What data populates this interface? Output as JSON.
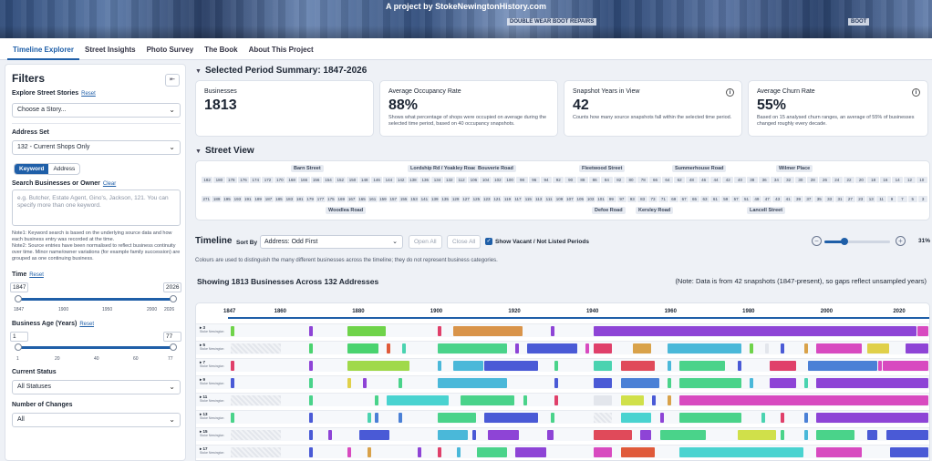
{
  "banner": {
    "text": "A project by StokeNewingtonHistory.com",
    "sign_1": "DOUBLE WEAR BOOT REPAIRS",
    "sign_2": "BOOT"
  },
  "nav": {
    "tabs": [
      "Timeline Explorer",
      "Street Insights",
      "Photo Survey",
      "The Book",
      "About This Project"
    ],
    "active": "Timeline Explorer"
  },
  "sidebar": {
    "title": "Filters",
    "collapse_icon": "collapse-icon",
    "street_stories": {
      "label": "Explore Street Stories",
      "reset": "Reset",
      "value": "Choose a Story..."
    },
    "address_set": {
      "label": "Address Set",
      "value": "132 - Current Shops Only"
    },
    "mode": {
      "keyword": "Keyword",
      "address": "Address"
    },
    "search": {
      "label": "Search Businesses or Owner",
      "clear": "Clear",
      "placeholder": "e.g. Butcher, Estate Agent, Gino's, Jackson, 121. You can specify more than one keyword."
    },
    "note1": "Note1: Keyword search is based on the underlying source data and how each business entry was recorded at the time.",
    "note2": "Note2: Source entries have been normalised to reflect business continuity over time. Minor name/owner variations (for example family succession) are grouped as one continuing business.",
    "time": {
      "label": "Time",
      "reset": "Reset",
      "min": "1847",
      "max": "2026",
      "ticks": [
        "1847",
        "1900",
        "1950",
        "2000",
        "2026"
      ]
    },
    "age": {
      "label": "Business Age (Years)",
      "reset": "Reset",
      "min": "1",
      "max": "77",
      "ticks": [
        "1",
        "20",
        "40",
        "60",
        "77"
      ]
    },
    "status": {
      "label": "Current Status",
      "value": "All Statuses"
    },
    "changes": {
      "label": "Number of Changes",
      "value": "All"
    }
  },
  "summary": {
    "title": "Selected Period Summary: 1847-2026",
    "cards": [
      {
        "title": "Businesses",
        "value": "1813",
        "desc": ""
      },
      {
        "title": "Average Occupancy Rate",
        "value": "88%",
        "desc": "Shows what percentage of shops were occupied on average during the selected time period, based on 40 occupancy snapshots."
      },
      {
        "title": "Snapshot Years in View",
        "value": "42",
        "desc": "Counts how many source snapshots fall within the selected time period."
      },
      {
        "title": "Average Churn Rate",
        "value": "55%",
        "desc": "Based on 15 analysed churn ranges, an average of 55% of businesses changed roughly every decade."
      }
    ]
  },
  "street_view": {
    "title": "Street View",
    "top_streets": [
      "Barn Street",
      "Lordship Rd / Yoakley Road",
      "Bouverie Road",
      "Fleetwood Street",
      "Summerhouse Road",
      "Wilmer Place"
    ],
    "bottom_streets": [
      "Woodlea Road",
      "Defoe Road",
      "Kersley Road",
      "Lancell Street"
    ],
    "top_numbers": [
      "182",
      "180",
      "178",
      "176",
      "174",
      "172",
      "170",
      "168",
      "166",
      "156",
      "154",
      "152",
      "150",
      "148",
      "146",
      "144",
      "142",
      "138",
      "136",
      "134",
      "132",
      "112",
      "106",
      "104",
      "102",
      "100",
      "98",
      "96",
      "94",
      "92",
      "90",
      "88",
      "86",
      "84",
      "82",
      "80",
      "78",
      "66",
      "64",
      "62",
      "48",
      "46",
      "44",
      "42",
      "40",
      "38",
      "36",
      "34",
      "32",
      "30",
      "28",
      "26",
      "24",
      "22",
      "20",
      "18",
      "16",
      "14",
      "12",
      "10"
    ],
    "bottom_numbers": [
      "271",
      "189",
      "195",
      "193",
      "191",
      "189",
      "187",
      "185",
      "183",
      "181",
      "179",
      "177",
      "175",
      "169",
      "167",
      "165",
      "161",
      "159",
      "157",
      "155",
      "153",
      "141",
      "139",
      "135",
      "129",
      "127",
      "125",
      "123",
      "121",
      "119",
      "117",
      "115",
      "113",
      "111",
      "109",
      "107",
      "105",
      "103",
      "101",
      "99",
      "97",
      "93",
      "83",
      "73",
      "71",
      "69",
      "67",
      "65",
      "63",
      "61",
      "59",
      "57",
      "51",
      "49",
      "47",
      "43",
      "41",
      "39",
      "37",
      "35",
      "33",
      "31",
      "27",
      "23",
      "13",
      "11",
      "9",
      "7",
      "5",
      "3"
    ]
  },
  "timeline": {
    "title": "Timeline",
    "sort_label": "Sort By",
    "sort_value": "Address: Odd First",
    "open_all": "Open All",
    "close_all": "Close All",
    "show_vacant": "Show Vacant / Not Listed Periods",
    "zoom_pct": "31%",
    "colour_note": "Colours are used to distinguish the many different businesses across the timeline; they do not represent business categories.",
    "showing": "Showing 1813 Businesses Across 132 Addresses",
    "data_note": "(Note: Data is from 42 snapshots (1847-present), so gaps reflect unsampled years)",
    "years": [
      "1847",
      "1860",
      "1880",
      "1900",
      "1920",
      "1940",
      "1960",
      "1980",
      "2000",
      "2020",
      "2026"
    ],
    "rows": [
      {
        "num": "3",
        "label": "Stoke Newington",
        "segments": [
          [
            1847,
            1848,
            "#6fd34a"
          ],
          [
            1867,
            1868,
            "#8e44d6"
          ],
          [
            1877,
            1887,
            "#6fd34a"
          ],
          [
            1900,
            1901,
            "#e0406a"
          ],
          [
            1904,
            1922,
            "#d9944a"
          ],
          [
            1929,
            1930,
            "#8e44d6"
          ],
          [
            1940,
            2023,
            "#8e44d6"
          ],
          [
            2023,
            2026,
            "#d84ac0"
          ]
        ]
      },
      {
        "num": "5",
        "label": "Stoke Newington",
        "segments": [
          [
            1847,
            1860,
            "vacant"
          ],
          [
            1867,
            1868,
            "#4ad36f"
          ],
          [
            1877,
            1885,
            "#4ad36f"
          ],
          [
            1887,
            1888,
            "#e05a3a"
          ],
          [
            1891,
            1892,
            "#4ad3b0"
          ],
          [
            1900,
            1918,
            "#4ad38a"
          ],
          [
            1920,
            1921,
            "#8e44d6"
          ],
          [
            1923,
            1936,
            "#4a5ad6"
          ],
          [
            1938,
            1939,
            "#d84ac0"
          ],
          [
            1940,
            1945,
            "#e0406a"
          ],
          [
            1950,
            1955,
            "#d9a24a"
          ],
          [
            1959,
            1978,
            "#4ab8d9"
          ],
          [
            1980,
            1981,
            "#6fd34a"
          ],
          [
            1984,
            1985,
            "#e3e6ec"
          ],
          [
            1988,
            1989,
            "#4a5ad6"
          ],
          [
            1994,
            1995,
            "#d9a24a"
          ],
          [
            1997,
            2009,
            "#d84ac0"
          ],
          [
            2010,
            2016,
            "#e0d04a"
          ],
          [
            2020,
            2026,
            "#8e44d6"
          ]
        ]
      },
      {
        "num": "7",
        "label": "Stoke Newington",
        "segments": [
          [
            1847,
            1848,
            "#e0406a"
          ],
          [
            1867,
            1868,
            "#8e44d6"
          ],
          [
            1877,
            1893,
            "#a0d94a"
          ],
          [
            1900,
            1901,
            "#4ab8d9"
          ],
          [
            1904,
            1912,
            "#4ab8d9"
          ],
          [
            1912,
            1926,
            "#4a5ad6"
          ],
          [
            1930,
            1931,
            "#4ad38a"
          ],
          [
            1940,
            1945,
            "#4ad3b0"
          ],
          [
            1947,
            1956,
            "#e04a5a"
          ],
          [
            1959,
            1960,
            "#4ab8d9"
          ],
          [
            1962,
            1974,
            "#4ad38a"
          ],
          [
            1977,
            1978,
            "#4a5ad6"
          ],
          [
            1985,
            1992,
            "#e0406a"
          ],
          [
            1995,
            2013,
            "#4a80d6"
          ],
          [
            2013,
            2014,
            "#d84ac0"
          ],
          [
            2014,
            2026,
            "#d84ac0"
          ]
        ]
      },
      {
        "num": "9",
        "label": "Stoke Newington",
        "segments": [
          [
            1847,
            1848,
            "#4a5ad6"
          ],
          [
            1867,
            1868,
            "#4ad38a"
          ],
          [
            1877,
            1878,
            "#e0d04a"
          ],
          [
            1881,
            1882,
            "#8e44d6"
          ],
          [
            1890,
            1891,
            "#4ad38a"
          ],
          [
            1900,
            1918,
            "#4ab8d9"
          ],
          [
            1930,
            1931,
            "#4a5ad6"
          ],
          [
            1940,
            1945,
            "#4a5ad6"
          ],
          [
            1947,
            1957,
            "#4a80d6"
          ],
          [
            1959,
            1960,
            "#4ad38a"
          ],
          [
            1962,
            1978,
            "#4ad38a"
          ],
          [
            1980,
            1981,
            "#4ab8d9"
          ],
          [
            1985,
            1992,
            "#8e44d6"
          ],
          [
            1994,
            1995,
            "#4ad3b0"
          ],
          [
            1997,
            2026,
            "#8e44d6"
          ]
        ]
      },
      {
        "num": "11",
        "label": "Stoke Newington",
        "segments": [
          [
            1847,
            1860,
            "vacant"
          ],
          [
            1867,
            1868,
            "#4ad38a"
          ],
          [
            1884,
            1885,
            "#4ad38a"
          ],
          [
            1887,
            1903,
            "#4ad3d0"
          ],
          [
            1906,
            1920,
            "#4ad38a"
          ],
          [
            1922,
            1923,
            "#4ad38a"
          ],
          [
            1930,
            1931,
            "#e0406a"
          ],
          [
            1940,
            1945,
            "#e3e6ec"
          ],
          [
            1947,
            1953,
            "#d0e04a"
          ],
          [
            1955,
            1956,
            "#4a5ad6"
          ],
          [
            1959,
            1960,
            "#d9a24a"
          ],
          [
            1962,
            2026,
            "#d84ac0"
          ]
        ]
      },
      {
        "num": "13",
        "label": "Stoke Newington",
        "segments": [
          [
            1847,
            1848,
            "#4ad38a"
          ],
          [
            1867,
            1868,
            "#4a5ad6"
          ],
          [
            1882,
            1883,
            "#4ad3b0"
          ],
          [
            1884,
            1885,
            "#4a80d6"
          ],
          [
            1890,
            1891,
            "#4a80d6"
          ],
          [
            1900,
            1910,
            "#4ad38a"
          ],
          [
            1912,
            1926,
            "#4a5ad6"
          ],
          [
            1929,
            1930,
            "#4ad38a"
          ],
          [
            1940,
            1945,
            "vacant"
          ],
          [
            1947,
            1955,
            "#4ad3d0"
          ],
          [
            1957,
            1958,
            "#8e44d6"
          ],
          [
            1962,
            1978,
            "#4ad38a"
          ],
          [
            1983,
            1984,
            "#4ad3b0"
          ],
          [
            1988,
            1989,
            "#e0406a"
          ],
          [
            1994,
            1995,
            "#4a80d6"
          ],
          [
            1997,
            2026,
            "#8e44d6"
          ]
        ]
      },
      {
        "num": "15",
        "label": "Stoke Newington",
        "segments": [
          [
            1847,
            1860,
            "vacant"
          ],
          [
            1867,
            1868,
            "#4a5ad6"
          ],
          [
            1872,
            1873,
            "#8e44d6"
          ],
          [
            1880,
            1888,
            "#4a5ad6"
          ],
          [
            1900,
            1908,
            "#4ab8d9"
          ],
          [
            1909,
            1910,
            "#4a5ad6"
          ],
          [
            1913,
            1921,
            "#8e44d6"
          ],
          [
            1928,
            1930,
            "#8e44d6"
          ],
          [
            1940,
            1950,
            "#e04a5a"
          ],
          [
            1952,
            1955,
            "#8e44d6"
          ],
          [
            1957,
            1969,
            "#4ad38a"
          ],
          [
            1977,
            1987,
            "#d0e04a"
          ],
          [
            1988,
            1989,
            "#4ad38a"
          ],
          [
            1994,
            1995,
            "#4ab8d9"
          ],
          [
            1997,
            2007,
            "#4ad38a"
          ],
          [
            2010,
            2013,
            "#4a5ad6"
          ],
          [
            2015,
            2026,
            "#4a5ad6"
          ]
        ]
      },
      {
        "num": "17",
        "label": "Stoke Newington",
        "segments": [
          [
            1847,
            1860,
            "vacant"
          ],
          [
            1867,
            1868,
            "#4a5ad6"
          ],
          [
            1877,
            1878,
            "#d84ac0"
          ],
          [
            1882,
            1883,
            "#d9a24a"
          ],
          [
            1895,
            1896,
            "#8e44d6"
          ],
          [
            1900,
            1901,
            "#e0406a"
          ],
          [
            1905,
            1906,
            "#4ab8d9"
          ],
          [
            1910,
            1918,
            "#4ad38a"
          ],
          [
            1920,
            1928,
            "#8e44d6"
          ],
          [
            1940,
            1945,
            "#d84ac0"
          ],
          [
            1947,
            1956,
            "#e05a3a"
          ],
          [
            1962,
            1994,
            "#4ad3d0"
          ],
          [
            1997,
            2009,
            "#d84ac0"
          ],
          [
            2016,
            2026,
            "#4a5ad6"
          ]
        ]
      }
    ]
  }
}
